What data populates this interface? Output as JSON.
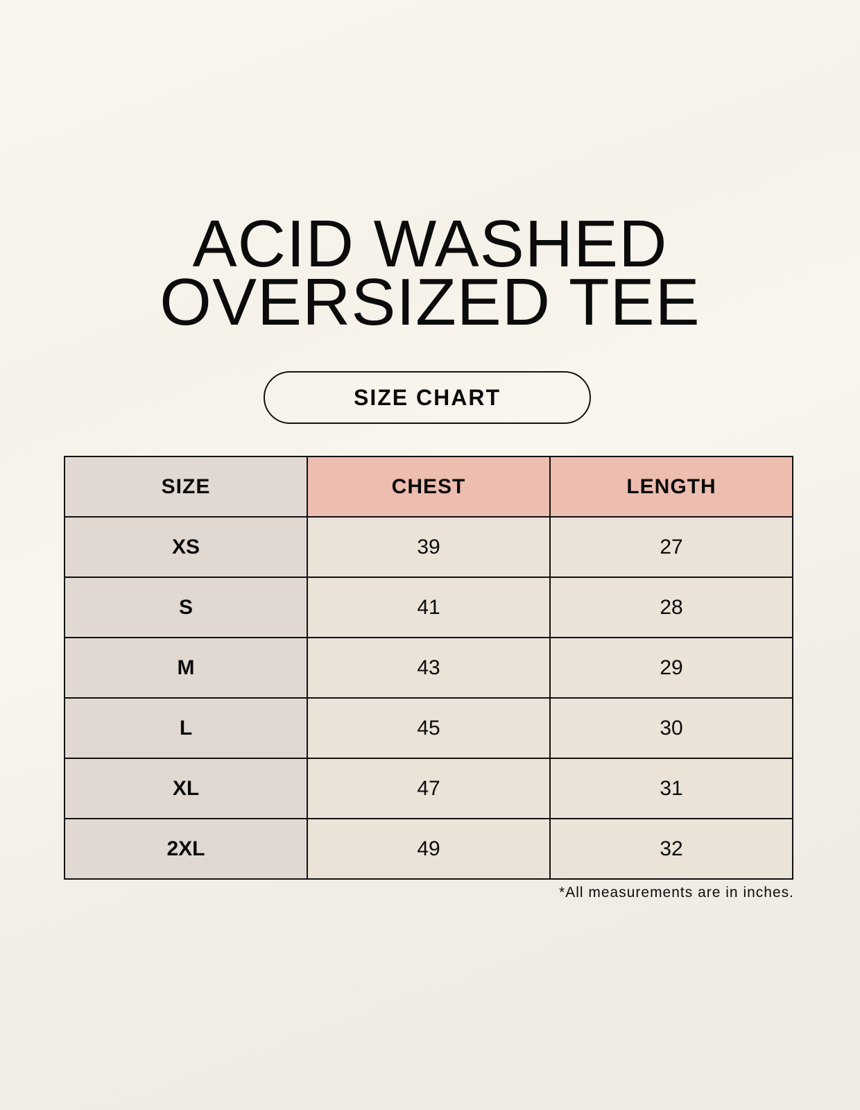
{
  "title": {
    "line1": "ACID WASHED",
    "line2": "OVERSIZED TEE"
  },
  "badge": "SIZE CHART",
  "table": {
    "headers": [
      "SIZE",
      "CHEST",
      "LENGTH"
    ],
    "rows": [
      [
        "XS",
        "39",
        "27"
      ],
      [
        "S",
        "41",
        "28"
      ],
      [
        "M",
        "43",
        "29"
      ],
      [
        "L",
        "45",
        "30"
      ],
      [
        "XL",
        "47",
        "31"
      ],
      [
        "2XL",
        "49",
        "32"
      ]
    ]
  },
  "footnote": "*All measurements are in inches.",
  "colors": {
    "size_column": "#e1d8d2",
    "measure_header": "#edbdb0",
    "cells": "#ebe2d8"
  }
}
